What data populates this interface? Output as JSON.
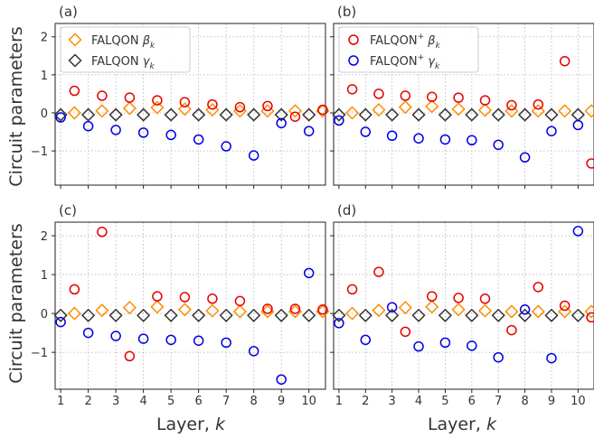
{
  "figure": {
    "ylabel": "Circuit parameters",
    "xlabel_prefix": "Layer, ",
    "xlabel_var": "k"
  },
  "colors": {
    "beta_diamond": "#ff8c00",
    "gamma_diamond": "#333333",
    "beta_plus": "#e60000",
    "gamma_plus": "#0000e6",
    "grid": "#b0b0b0",
    "axis": "#222222"
  },
  "chart_data": [
    {
      "panel": "(a)",
      "type": "scatter",
      "xlabel": "",
      "ylabel": "Circuit parameters",
      "xlim": [
        0.8,
        10.6
      ],
      "ylim": [
        -1.9,
        2.35
      ],
      "xticks": [
        1,
        2,
        3,
        4,
        5,
        6,
        7,
        8,
        9,
        10
      ],
      "yticks": [
        -1,
        0,
        1,
        2
      ],
      "grid": true,
      "legend": "top-left",
      "series": [
        {
          "name": "FALQON βk",
          "label_main": "FALQON ",
          "label_sym": "β",
          "label_sub": "k",
          "sup": "",
          "marker": "diamond",
          "color": "#ff8c00",
          "x": [
            1.5,
            2.5,
            3.5,
            4.5,
            5.5,
            6.5,
            7.5,
            8.5,
            9.5,
            10.5
          ],
          "y": [
            0.0,
            0.05,
            0.12,
            0.14,
            0.1,
            0.08,
            0.05,
            0.05,
            0.05,
            0.05
          ]
        },
        {
          "name": "FALQON γk",
          "label_main": "FALQON ",
          "label_sym": "γ",
          "label_sub": "k",
          "sup": "",
          "marker": "diamond",
          "color": "#333333",
          "x": [
            1,
            2,
            3,
            4,
            5,
            6,
            7,
            8,
            9,
            10
          ],
          "y": [
            -0.05,
            -0.05,
            -0.05,
            -0.05,
            -0.05,
            -0.05,
            -0.05,
            -0.05,
            -0.05,
            -0.05
          ]
        },
        {
          "name": "beta circles",
          "marker": "circle",
          "color": "#e60000",
          "legend": false,
          "x": [
            1.5,
            2.5,
            3.5,
            4.5,
            5.5,
            6.5,
            7.5,
            8.5,
            9.5,
            10.5
          ],
          "y": [
            0.58,
            0.45,
            0.4,
            0.33,
            0.28,
            0.22,
            0.15,
            0.18,
            -0.1,
            0.08
          ]
        },
        {
          "name": "gamma circles",
          "marker": "circle",
          "color": "#0000e6",
          "legend": false,
          "x": [
            1,
            2,
            3,
            4,
            5,
            6,
            7,
            8,
            9,
            10
          ],
          "y": [
            -0.12,
            -0.35,
            -0.45,
            -0.52,
            -0.58,
            -0.7,
            -0.88,
            -1.12,
            -0.27,
            -0.48
          ]
        }
      ]
    },
    {
      "panel": "(b)",
      "type": "scatter",
      "xlabel": "",
      "ylabel": "",
      "xlim": [
        0.8,
        10.6
      ],
      "ylim": [
        -1.9,
        2.35
      ],
      "xticks": [
        1,
        2,
        3,
        4,
        5,
        6,
        7,
        8,
        9,
        10
      ],
      "yticks": [
        -1,
        0,
        1,
        2
      ],
      "grid": true,
      "legend": "top-left",
      "series": [
        {
          "name": "betadiamond",
          "marker": "diamond",
          "color": "#ff8c00",
          "legend": false,
          "x": [
            1.5,
            2.5,
            3.5,
            4.5,
            5.5,
            6.5,
            7.5,
            8.5,
            9.5,
            10.5
          ],
          "y": [
            0.0,
            0.08,
            0.15,
            0.17,
            0.1,
            0.07,
            0.05,
            0.05,
            0.05,
            0.05
          ]
        },
        {
          "name": "gammadiamond",
          "marker": "diamond",
          "color": "#333333",
          "legend": false,
          "x": [
            1,
            2,
            3,
            4,
            5,
            6,
            7,
            8,
            9,
            10
          ],
          "y": [
            -0.05,
            -0.05,
            -0.05,
            -0.05,
            -0.05,
            -0.05,
            -0.05,
            -0.05,
            -0.05,
            -0.05
          ]
        },
        {
          "name": "FALQON+ βk",
          "label_main": "FALQON",
          "sup": "+",
          "label_sym": " β",
          "label_sub": "k",
          "marker": "circle",
          "color": "#e60000",
          "x": [
            1.5,
            2.5,
            3.5,
            4.5,
            5.5,
            6.5,
            7.5,
            8.5,
            9.5,
            10.5
          ],
          "y": [
            0.62,
            0.5,
            0.45,
            0.42,
            0.4,
            0.33,
            0.2,
            0.22,
            1.36,
            -1.33
          ]
        },
        {
          "name": "FALQON+ γk",
          "label_main": "FALQON",
          "sup": "+",
          "label_sym": " γ",
          "label_sub": "k",
          "marker": "circle",
          "color": "#0000e6",
          "x": [
            1,
            2,
            3,
            4,
            5,
            6,
            7,
            8,
            9,
            10
          ],
          "y": [
            -0.2,
            -0.5,
            -0.6,
            -0.67,
            -0.7,
            -0.72,
            -0.84,
            -1.17,
            -0.48,
            -0.32
          ]
        }
      ]
    },
    {
      "panel": "(c)",
      "type": "scatter",
      "xlabel": "Layer, k",
      "ylabel": "Circuit parameters",
      "xlim": [
        0.8,
        10.6
      ],
      "ylim": [
        -1.95,
        2.35
      ],
      "xticks": [
        1,
        2,
        3,
        4,
        5,
        6,
        7,
        8,
        9,
        10
      ],
      "yticks": [
        -1,
        0,
        1,
        2
      ],
      "grid": true,
      "legend": "none",
      "series": [
        {
          "name": "betadiamond",
          "marker": "diamond",
          "color": "#ff8c00",
          "legend": false,
          "x": [
            1.5,
            2.5,
            3.5,
            4.5,
            5.5,
            6.5,
            7.5,
            8.5,
            9.5,
            10.5
          ],
          "y": [
            0.0,
            0.08,
            0.15,
            0.17,
            0.1,
            0.07,
            0.05,
            0.05,
            0.05,
            0.05
          ]
        },
        {
          "name": "gammadiamond",
          "marker": "diamond",
          "color": "#333333",
          "legend": false,
          "x": [
            1,
            2,
            3,
            4,
            5,
            6,
            7,
            8,
            9,
            10
          ],
          "y": [
            -0.05,
            -0.05,
            -0.05,
            -0.05,
            -0.05,
            -0.05,
            -0.05,
            -0.05,
            -0.05,
            -0.05
          ]
        },
        {
          "name": "beta circles",
          "marker": "circle",
          "color": "#e60000",
          "legend": false,
          "x": [
            1.5,
            2.5,
            3.5,
            4.5,
            5.5,
            6.5,
            7.5,
            8.5,
            9.5,
            10.5
          ],
          "y": [
            0.62,
            2.1,
            -1.1,
            0.44,
            0.42,
            0.38,
            0.32,
            0.12,
            0.12,
            0.1
          ]
        },
        {
          "name": "gamma circles",
          "marker": "circle",
          "color": "#0000e6",
          "legend": false,
          "x": [
            1,
            2,
            3,
            4,
            5,
            6,
            7,
            8,
            9,
            10
          ],
          "y": [
            -0.22,
            -0.5,
            -0.58,
            -0.65,
            -0.68,
            -0.7,
            -0.75,
            -0.97,
            -1.7,
            1.04
          ]
        }
      ]
    },
    {
      "panel": "(d)",
      "type": "scatter",
      "xlabel": "Layer, k",
      "ylabel": "",
      "xlim": [
        0.8,
        10.6
      ],
      "ylim": [
        -1.95,
        2.35
      ],
      "xticks": [
        1,
        2,
        3,
        4,
        5,
        6,
        7,
        8,
        9,
        10
      ],
      "yticks": [
        -1,
        0,
        1,
        2
      ],
      "grid": true,
      "legend": "none",
      "series": [
        {
          "name": "betadiamond",
          "marker": "diamond",
          "color": "#ff8c00",
          "legend": false,
          "x": [
            1.5,
            2.5,
            3.5,
            4.5,
            5.5,
            6.5,
            7.5,
            8.5,
            9.5,
            10.5
          ],
          "y": [
            0.0,
            0.08,
            0.15,
            0.17,
            0.1,
            0.07,
            0.05,
            0.05,
            0.05,
            0.05
          ]
        },
        {
          "name": "gammadiamond",
          "marker": "diamond",
          "color": "#333333",
          "legend": false,
          "x": [
            1,
            2,
            3,
            4,
            5,
            6,
            7,
            8,
            9,
            10
          ],
          "y": [
            -0.05,
            -0.05,
            -0.05,
            -0.05,
            -0.05,
            -0.05,
            -0.05,
            -0.05,
            -0.05,
            -0.05
          ]
        },
        {
          "name": "beta circles",
          "marker": "circle",
          "color": "#e60000",
          "legend": false,
          "x": [
            1.5,
            2.5,
            3.5,
            4.5,
            5.5,
            6.5,
            7.5,
            8.5,
            9.5,
            10.5
          ],
          "y": [
            0.62,
            1.07,
            -0.47,
            0.44,
            0.4,
            0.38,
            -0.43,
            0.68,
            0.2,
            -0.1
          ]
        },
        {
          "name": "gamma circles",
          "marker": "circle",
          "color": "#0000e6",
          "legend": false,
          "x": [
            1,
            2,
            3,
            4,
            5,
            6,
            7,
            8,
            9,
            10
          ],
          "y": [
            -0.25,
            -0.68,
            0.16,
            -0.85,
            -0.75,
            -0.83,
            -1.13,
            0.1,
            -1.15,
            2.12
          ]
        }
      ]
    }
  ]
}
